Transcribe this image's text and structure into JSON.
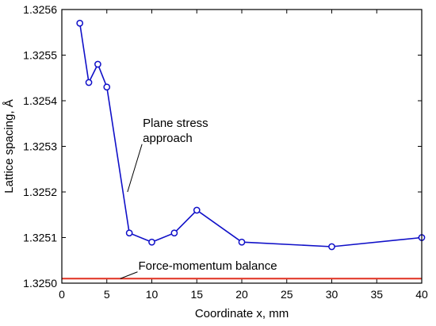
{
  "chart_data": {
    "type": "line",
    "xlabel": "Coordinate x, mm",
    "ylabel": "Lattice spacing, Å",
    "xlim": [
      0,
      40
    ],
    "ylim": [
      1.325,
      1.3256
    ],
    "xticks": [
      0,
      5,
      10,
      15,
      20,
      25,
      30,
      35,
      40
    ],
    "yticks": [
      1.325,
      1.3251,
      1.3252,
      1.3253,
      1.3254,
      1.3255,
      1.3256
    ],
    "xtick_labels": [
      "0",
      "5",
      "10",
      "15",
      "20",
      "25",
      "30",
      "35",
      "40"
    ],
    "ytick_labels": [
      "1.3250",
      "1.3251",
      "1.3252",
      "1.3253",
      "1.3254",
      "1.3255",
      "1.3256"
    ],
    "grid": false,
    "series": [
      {
        "name": "Plane stress approach",
        "color": "#1010c8",
        "marker": "open-circle",
        "x": [
          2,
          3,
          4,
          5,
          7.5,
          10,
          12.5,
          15,
          20,
          30,
          40
        ],
        "y": [
          1.32557,
          1.32544,
          1.32548,
          1.32543,
          1.32511,
          1.32509,
          1.32511,
          1.32516,
          1.32509,
          1.32508,
          1.3251
        ]
      },
      {
        "name": "Force-momentum balance",
        "color": "#e03020",
        "x": [
          0,
          40
        ],
        "y": [
          1.32501,
          1.32501
        ]
      }
    ],
    "annotations": [
      {
        "lines": [
          "Plane stress",
          "approach"
        ],
        "target_x": 7.3,
        "target_y": 1.3252,
        "label_x": 9,
        "label_y": 1.32531
      },
      {
        "lines": [
          "Force-momentum balance"
        ],
        "target_x": 6.5,
        "target_y": 1.32501,
        "label_x": 8.5,
        "label_y": 1.32503
      }
    ]
  }
}
